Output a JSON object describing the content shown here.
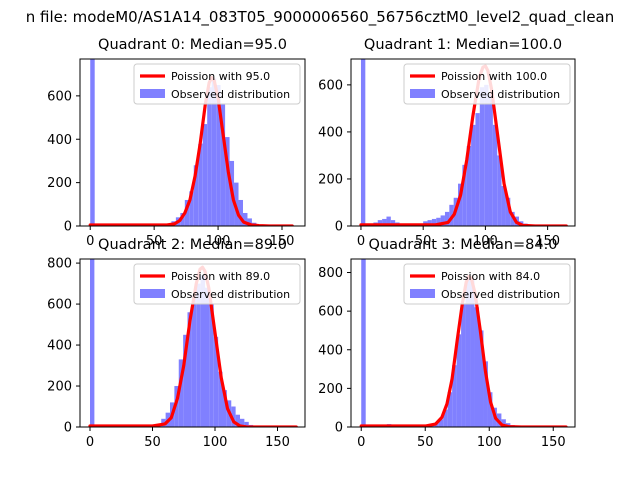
{
  "figure": {
    "suptitle": "n file: modeM0/AS1A14_083T05_9000006560_56756cztM0_level2_quad_clean"
  },
  "colors": {
    "bar": "#8080ff",
    "line": "#ff0000",
    "axes": "#000000"
  },
  "chart_data": [
    {
      "type": "bar",
      "title": "Quadrant 0: Median=95.0",
      "median": 95.0,
      "xlim": [
        -8,
        168
      ],
      "ylim": [
        0,
        770
      ],
      "xticks": [
        0,
        50,
        100,
        150
      ],
      "yticks": [
        0,
        200,
        400,
        600
      ],
      "bin_width": 3.5,
      "bins_x": [
        0,
        60,
        63.5,
        67,
        70.5,
        74,
        77.5,
        81,
        84.5,
        88,
        91.5,
        95,
        98.5,
        102,
        105.5,
        109,
        112.5,
        116,
        119.5,
        123,
        126.5,
        130
      ],
      "observed": [
        770,
        5,
        22,
        40,
        60,
        120,
        160,
        280,
        380,
        470,
        640,
        680,
        650,
        560,
        410,
        300,
        200,
        120,
        60,
        35,
        15,
        5
      ],
      "poisson_label": "Poission with 95.0",
      "observed_label": "Observed distribution",
      "poisson_x": [
        0,
        50,
        60,
        66,
        70,
        74,
        78,
        82,
        86,
        90,
        93,
        95,
        97,
        100,
        104,
        108,
        112,
        116,
        120,
        126,
        132,
        140,
        158
      ],
      "poisson_y": [
        5,
        5,
        5,
        10,
        25,
        60,
        120,
        230,
        380,
        560,
        660,
        685,
        670,
        590,
        420,
        250,
        120,
        50,
        18,
        5,
        2,
        0,
        0
      ],
      "legend_location": "upper right"
    },
    {
      "type": "bar",
      "title": "Quadrant 1: Median=100.0",
      "median": 100.0,
      "xlim": [
        -8,
        172
      ],
      "ylim": [
        0,
        710
      ],
      "xticks": [
        0,
        50,
        100,
        150
      ],
      "yticks": [
        0,
        200,
        400,
        600
      ],
      "bin_width": 3.5,
      "bins_x": [
        0,
        10,
        13.5,
        17,
        20.5,
        24,
        27.5,
        31,
        34.5,
        38,
        50,
        53.5,
        57,
        60.5,
        64,
        67.5,
        71,
        74.5,
        78,
        81.5,
        85,
        88.5,
        92,
        95.5,
        99,
        102.5,
        106,
        109.5,
        113,
        116.5,
        120,
        123.5,
        127,
        130.5
      ],
      "observed": [
        710,
        15,
        25,
        30,
        40,
        25,
        15,
        10,
        5,
        5,
        20,
        25,
        30,
        35,
        45,
        60,
        90,
        120,
        180,
        260,
        340,
        430,
        480,
        590,
        600,
        560,
        430,
        300,
        170,
        120,
        60,
        40,
        20,
        10
      ],
      "poisson_label": "Poission with 100.0",
      "observed_label": "Observed distribution",
      "poisson_x": [
        0,
        60,
        70,
        75,
        80,
        85,
        90,
        95,
        98,
        100,
        102,
        105,
        110,
        115,
        120,
        125,
        130,
        140,
        165
      ],
      "poisson_y": [
        5,
        5,
        15,
        50,
        130,
        280,
        470,
        630,
        675,
        680,
        660,
        580,
        380,
        180,
        60,
        15,
        3,
        0,
        0
      ],
      "legend_location": "upper right"
    },
    {
      "type": "bar",
      "title": "Quadrant 2: Median=89.0",
      "median": 89.0,
      "xlim": [
        -8,
        172
      ],
      "ylim": [
        0,
        820
      ],
      "xticks": [
        0,
        50,
        100,
        150
      ],
      "yticks": [
        0,
        200,
        400,
        600,
        800
      ],
      "bin_width": 3.5,
      "bins_x": [
        0,
        50,
        53.5,
        57,
        60.5,
        64,
        67.5,
        71,
        74.5,
        78,
        81.5,
        85,
        88.5,
        92,
        95.5,
        99,
        102.5,
        106,
        109.5,
        113,
        116.5,
        120,
        123.5,
        127,
        130.5
      ],
      "observed": [
        820,
        5,
        15,
        40,
        70,
        120,
        200,
        330,
        450,
        560,
        640,
        700,
        740,
        680,
        600,
        440,
        270,
        180,
        130,
        100,
        60,
        40,
        25,
        10,
        5
      ],
      "poisson_label": "Poission with 89.0",
      "observed_label": "Observed distribution",
      "poisson_x": [
        0,
        50,
        60,
        65,
        70,
        75,
        80,
        85,
        88,
        90,
        92,
        95,
        100,
        105,
        110,
        115,
        120,
        125,
        135,
        165
      ],
      "poisson_y": [
        5,
        5,
        15,
        45,
        140,
        300,
        520,
        700,
        770,
        780,
        760,
        680,
        460,
        240,
        90,
        25,
        5,
        1,
        0,
        0
      ],
      "legend_location": "upper right"
    },
    {
      "type": "bar",
      "title": "Quadrant 3: Median=84.0",
      "median": 84.0,
      "xlim": [
        -8,
        167
      ],
      "ylim": [
        0,
        870
      ],
      "xticks": [
        0,
        50,
        100,
        150
      ],
      "yticks": [
        0,
        200,
        400,
        600,
        800
      ],
      "bin_width": 3.5,
      "bins_x": [
        0,
        10,
        20,
        30,
        50,
        53.5,
        57,
        60.5,
        64,
        67.5,
        71,
        74.5,
        78,
        81.5,
        85,
        88.5,
        92,
        95.5,
        99,
        102.5,
        106,
        109.5,
        113,
        116.5,
        120
      ],
      "observed": [
        870,
        10,
        15,
        10,
        5,
        10,
        20,
        40,
        90,
        180,
        320,
        480,
        640,
        780,
        760,
        620,
        500,
        340,
        180,
        100,
        70,
        40,
        20,
        10,
        5
      ],
      "poisson_label": "Poission with 84.0",
      "observed_label": "Observed distribution",
      "poisson_x": [
        0,
        50,
        58,
        63,
        67,
        71,
        75,
        79,
        82,
        84,
        86,
        89,
        93,
        97,
        101,
        105,
        110,
        115,
        125,
        160
      ],
      "poisson_y": [
        5,
        5,
        15,
        50,
        120,
        250,
        450,
        640,
        750,
        780,
        770,
        690,
        500,
        290,
        130,
        45,
        10,
        2,
        0,
        0
      ],
      "legend_location": "upper right"
    }
  ]
}
